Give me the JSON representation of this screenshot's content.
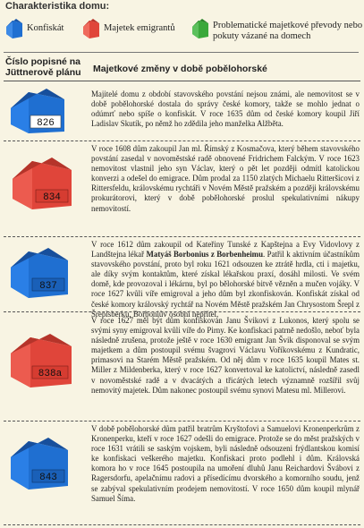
{
  "legend": {
    "title": "Charakteristika domu:",
    "items": [
      {
        "label": "Konfiskát",
        "color": "#1f6fd1"
      },
      {
        "label": "Majetek emigrantů",
        "color": "#e0453a"
      },
      {
        "label": "Problematické majetkové převody nebo pokuty vázané na domech",
        "color": "#3aa83a"
      }
    ]
  },
  "columns": {
    "number": "Číslo popisné na Jüttnerově plánu",
    "changes": "Majetkové změny v době pobělohorské"
  },
  "rows": [
    {
      "number": "826",
      "type": "konfiskat",
      "color": "#1f6fd1",
      "text": "Majitelé domu z období stavovského povstání nejsou známi, ale nemovitost se v době pobělohorské dostala do správy české komory, takže se mohlo jednat o odúmrť nebo spíše o konfiskát. V roce 1635 dům od české komory koupil Jiří Ladislav Skutík, po němž ho zdědila jeho manželka Alžběta."
    },
    {
      "number": "834",
      "type": "emigrant",
      "color": "#e0453a",
      "text": "V roce 1608 dům zakoupil Jan ml. Římský z Kosmačova, který během stavovského povstání zasedal v novoměstské radě obnovené Fridrichem Falckým. V roce 1623 nemovitost vlastnil jeho syn Václav, který o pět let později odmítl katolickou konverzi a odešel do emigrace. Dům prodal za 1150 zlatých Michaelu Ritteršicovi z Rittersfeldu, královskému rychtáři v Novém Městě pražském a později královskému prokurátorovi, který v době pobělohorské proslul spekulativními nákupy nemovitostí."
    },
    {
      "number": "837",
      "type": "konfiskat",
      "color": "#1f6fd1",
      "text_before": "V roce 1612 dům zakoupil od Kateřiny Tunské z Kapštejna a Evy Vidovlovy z Landštejna lékař ",
      "text_bold": "Matyáš Borbonius z Borbenheimu",
      "text_after": ". Patřil k aktivním účastníkům stavovského povstání, proto byl roku 1621 odsouzen ke ztrátě hrdla, cti i majetku, ale díky svým kontaktům, které získal lékařskou praxí, dosáhl milosti. Ve svém domě, kde provozoval i lékárnu, byl po bělohorské bitvě věz­něn a mučen vojáky. V roce 1627 kvůli víře emigroval a jeho dům byl zkonfiskován. Konfiskát získal od české komory královský rychtář na Novém Městě pražském Jan Chrysostom Šrepl z Šreplsberku, Borboniův osobní nepřítel."
    },
    {
      "number": "838a",
      "type": "emigrant",
      "color": "#e0453a",
      "text": "V roce 1627 měl být dům konfiskován Janu Švikovi z Lukonos, který spolu se svými syny emigroval kvůli víře do Pirny. Ke konfiskaci patrně nedošlo, neboť byla následně zrušena, protože ještě v roce 1630 emigrant Jan Švik disponoval se svým majetkem a dům postoupil svému švagrovi Václavu Voříkovskému z Kundratic, primasovi na Starém Městě pražském. Od něj dům v roce 1635 koupil Mates st. Miller z Mildenberka, který v roce 1627 konvertoval ke katolictví, následně zasedl v novoměstské radě a v dvacátých a třicátých letech významně rozšířil svůj nemovitý majetek. Dům nakonec postoupil svému synovi Matesu ml. Millerovi."
    },
    {
      "number": "843",
      "type": "konfiskat",
      "color": "#1f6fd1",
      "text": "V době pobělohorské dům patřil bratrům Kryštofovi a Samuelovi Kronenperkrům z Kronenperku, kteří v roce 1627 odešli do emigrace. Protože se do měst pražských v roce 1631 vrátili se saským vojskem, byli následně odsouzeni frýdlantskou komisí ke konfiskaci veškerého majetku. Konfiskaci proto podlehl i dům. Královská komora ho v roce 1645 postoupila na umoření dluhů Janu Reichardovi Švábovi z Ragersdorfu, apelačnímu radovi a přísedícímu dvorského a komorního soudu, jenž se zabýval spekulativním prodejem nemovitostí. V roce 1650 dům koupil mlynář Samuel Šíma."
    }
  ]
}
